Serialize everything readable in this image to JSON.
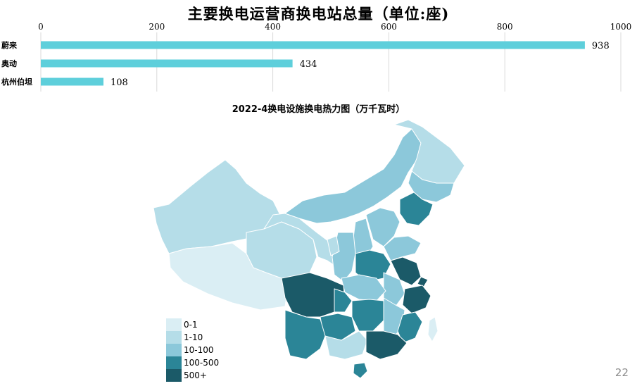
{
  "page": {
    "title": "主要换电运营商换电站总量（单位:座)",
    "heat_title": "2022-4换电设施换电热力图（万千瓦时）",
    "page_number": "22"
  },
  "chart_data": [
    {
      "type": "bar",
      "orientation": "horizontal",
      "title": "主要换电运营商换电站总量（单位:座)",
      "categories": [
        "蔚来",
        "奥动",
        "杭州伯坦"
      ],
      "values": [
        938,
        434,
        108
      ],
      "data_labels": [
        "938",
        "434",
        "108"
      ],
      "xlim": [
        0,
        1000
      ],
      "x_ticks": [
        "0",
        "200",
        "400",
        "600",
        "800",
        "1000"
      ],
      "x_axis_position": "top",
      "grid": true,
      "bar_color": "#5ecfdb"
    },
    {
      "type": "heatmap",
      "subtype": "choropleth",
      "title": "2022-4换电设施换电热力图（万千瓦时）",
      "legend": [
        {
          "label": "0-1",
          "color": "#daeef4"
        },
        {
          "label": "1-10",
          "color": "#b5dde8"
        },
        {
          "label": "10-100",
          "color": "#8cc8da"
        },
        {
          "label": "100-500",
          "color": "#2b8597"
        },
        {
          "label": "500+",
          "color": "#1b5a68"
        }
      ],
      "legend_position": "bottom-left"
    }
  ]
}
